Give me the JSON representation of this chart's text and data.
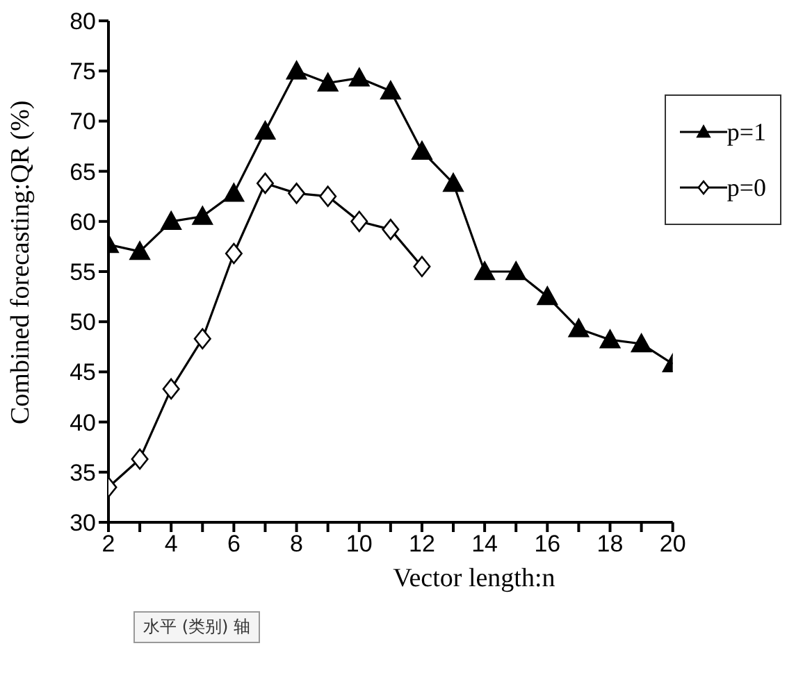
{
  "chart_data": {
    "type": "line",
    "xlabel": "Vector length:n",
    "ylabel": "Combined forecasting:QR (%)",
    "x": [
      2,
      3,
      4,
      5,
      6,
      7,
      8,
      9,
      10,
      11,
      12,
      13,
      14,
      15,
      16,
      17,
      18,
      19,
      20
    ],
    "series": [
      {
        "name": "p=1",
        "color": "#000000",
        "marker": "triangle",
        "values": [
          57.7,
          57,
          60,
          60.5,
          62.8,
          69,
          75,
          73.8,
          74.3,
          73,
          67,
          63.8,
          55,
          55,
          52.5,
          49.3,
          48.2,
          47.8,
          45.8
        ]
      },
      {
        "name": "p=0",
        "color": "#000000",
        "marker": "diamond",
        "values": [
          33.5,
          36.3,
          43.3,
          48.3,
          56.8,
          63.8,
          62.8,
          62.5,
          60,
          59.2,
          55.5,
          null,
          null,
          null,
          null,
          null,
          null,
          null,
          null
        ]
      }
    ],
    "xlim": [
      2,
      20
    ],
    "xticks": [
      2,
      {
        "value": 3,
        "label": null
      },
      4,
      {
        "value": 5,
        "label": null
      },
      6,
      {
        "value": 7,
        "label": null
      },
      8,
      {
        "value": 9,
        "label": null
      },
      10,
      {
        "value": 11,
        "label": null
      },
      12,
      {
        "value": 13,
        "label": null
      },
      14,
      {
        "value": 15,
        "label": null
      },
      16,
      {
        "value": 17,
        "label": null
      },
      18,
      {
        "value": 19,
        "label": null
      },
      20
    ],
    "ylim": [
      30,
      80
    ],
    "yticks": [
      30,
      35,
      40,
      45,
      50,
      55,
      60,
      65,
      70,
      75,
      80
    ],
    "grid": false,
    "legend": "top right",
    "line_style": "solid",
    "annotations": [
      "水平 (类别) 轴"
    ]
  }
}
